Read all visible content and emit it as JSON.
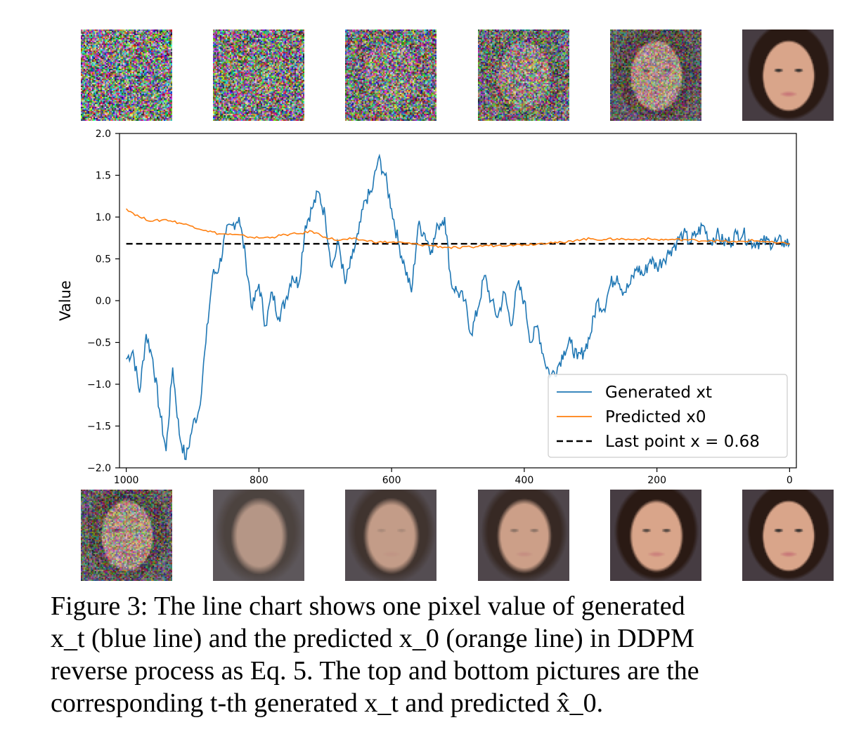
{
  "figure": {
    "top_images": [
      {
        "kind": "noise",
        "noise": 1.0,
        "face": 0.0,
        "dark_frac": 0.0
      },
      {
        "kind": "noise",
        "noise": 1.0,
        "face": 0.05,
        "dark_frac": 0.0
      },
      {
        "kind": "noise",
        "noise": 0.95,
        "face": 0.12,
        "dark_frac": 0.0
      },
      {
        "kind": "noise",
        "noise": 0.85,
        "face": 0.25,
        "dark_frac": 0.0
      },
      {
        "kind": "noise",
        "noise": 0.6,
        "face": 0.55,
        "dark_frac": 0.0
      },
      {
        "kind": "face",
        "noise": 0.0,
        "face": 1.0,
        "dark_frac": 0.0
      }
    ],
    "bottom_images": [
      {
        "kind": "blurface",
        "noise": 0.55,
        "face": 0.45,
        "blur": 0.0
      },
      {
        "kind": "blurface",
        "noise": 0.0,
        "face": 0.6,
        "blur": 1.0
      },
      {
        "kind": "blurface",
        "noise": 0.0,
        "face": 0.75,
        "blur": 0.8
      },
      {
        "kind": "blurface",
        "noise": 0.0,
        "face": 0.85,
        "blur": 0.55
      },
      {
        "kind": "blurface",
        "noise": 0.0,
        "face": 1.0,
        "blur": 0.2
      },
      {
        "kind": "face",
        "noise": 0.0,
        "face": 1.0,
        "blur": 0.0
      }
    ],
    "caption_lines": [
      "Figure 3: The line chart shows one pixel value of generated",
      "x_t (blue line) and the predicted x_0 (orange line) in DDPM",
      "reverse process as Eq. 5. The top and bottom pictures are the",
      "corresponding t-th generated x_t and predicted x̂_0."
    ]
  },
  "colors": {
    "generated": "#1f77b4",
    "predicted": "#ff7f0e",
    "reference": "#000000",
    "skin": "#d9a58a",
    "hair": "#2a1a14"
  },
  "chart_data": {
    "type": "line",
    "title": "",
    "xlabel": "",
    "ylabel": "Value",
    "xlim": [
      1000,
      0
    ],
    "ylim": [
      -2.0,
      2.0
    ],
    "x_ticks": [
      1000,
      800,
      600,
      400,
      200,
      0
    ],
    "y_ticks": [
      -2.0,
      -1.5,
      -1.0,
      -0.5,
      0.0,
      0.5,
      1.0,
      1.5,
      2.0
    ],
    "y_tick_labels": [
      "−2.0",
      "−1.5",
      "−1.0",
      "−0.5",
      "0.0",
      "0.5",
      "1.0",
      "1.5",
      "2.0"
    ],
    "legend_position": "lower-right",
    "series": [
      {
        "name": "Generated xt",
        "style": "solid",
        "x": [
          1000,
          990,
          980,
          970,
          960,
          950,
          940,
          930,
          920,
          910,
          900,
          890,
          880,
          870,
          860,
          850,
          840,
          830,
          820,
          810,
          800,
          790,
          780,
          770,
          760,
          750,
          740,
          730,
          720,
          710,
          700,
          690,
          680,
          670,
          660,
          650,
          640,
          630,
          620,
          610,
          600,
          590,
          580,
          570,
          560,
          550,
          540,
          530,
          520,
          510,
          500,
          490,
          480,
          470,
          460,
          450,
          440,
          430,
          420,
          410,
          400,
          390,
          380,
          370,
          360,
          350,
          340,
          330,
          320,
          310,
          300,
          290,
          280,
          270,
          260,
          250,
          240,
          230,
          220,
          210,
          200,
          190,
          180,
          170,
          160,
          150,
          140,
          130,
          120,
          110,
          100,
          90,
          80,
          70,
          60,
          50,
          40,
          30,
          20,
          10,
          0
        ],
        "y": [
          -0.7,
          -0.6,
          -1.1,
          -0.4,
          -0.7,
          -1.3,
          -1.8,
          -0.8,
          -1.6,
          -1.9,
          -1.5,
          -1.3,
          -0.5,
          0.3,
          0.4,
          0.8,
          0.9,
          1.0,
          0.5,
          -0.1,
          0.2,
          -0.3,
          0.1,
          -0.2,
          0.0,
          0.3,
          0.2,
          0.9,
          1.1,
          1.3,
          1.0,
          0.4,
          0.7,
          0.2,
          0.5,
          0.8,
          1.2,
          1.3,
          1.7,
          1.5,
          1.1,
          0.7,
          0.4,
          0.1,
          0.9,
          0.8,
          0.6,
          0.9,
          1.0,
          0.2,
          0.1,
          0.0,
          -0.4,
          -0.1,
          0.3,
          0.0,
          -0.2,
          0.1,
          -0.3,
          0.2,
          0.0,
          -0.5,
          -0.3,
          -0.7,
          -0.9,
          -0.8,
          -0.6,
          -0.5,
          -0.7,
          -0.6,
          -0.4,
          0.0,
          -0.1,
          0.2,
          0.3,
          0.1,
          0.2,
          0.4,
          0.3,
          0.5,
          0.4,
          0.5,
          0.6,
          0.7,
          0.8,
          0.7,
          0.8,
          0.9,
          0.7,
          0.8,
          0.7,
          0.7,
          0.8,
          0.8,
          0.7,
          0.7,
          0.7,
          0.7,
          0.7,
          0.7,
          0.68
        ]
      },
      {
        "name": "Predicted x0",
        "style": "solid",
        "x": [
          1000,
          980,
          960,
          940,
          920,
          900,
          880,
          860,
          840,
          820,
          800,
          780,
          760,
          740,
          720,
          700,
          680,
          660,
          640,
          620,
          600,
          580,
          560,
          540,
          520,
          500,
          480,
          460,
          440,
          420,
          400,
          380,
          360,
          340,
          320,
          300,
          280,
          260,
          240,
          220,
          200,
          180,
          160,
          140,
          120,
          100,
          80,
          60,
          40,
          20,
          0
        ],
        "y": [
          1.1,
          1.0,
          0.95,
          0.97,
          0.93,
          0.89,
          0.84,
          0.8,
          0.79,
          0.77,
          0.75,
          0.76,
          0.79,
          0.8,
          0.83,
          0.76,
          0.72,
          0.74,
          0.72,
          0.7,
          0.7,
          0.69,
          0.67,
          0.66,
          0.64,
          0.63,
          0.64,
          0.66,
          0.66,
          0.67,
          0.67,
          0.68,
          0.7,
          0.69,
          0.73,
          0.74,
          0.73,
          0.74,
          0.73,
          0.74,
          0.73,
          0.73,
          0.73,
          0.72,
          0.72,
          0.71,
          0.7,
          0.72,
          0.71,
          0.69,
          0.68
        ]
      }
    ],
    "reference_lines": [
      {
        "name": "Last point x = 0.68",
        "style": "dashed",
        "y": 0.68
      }
    ]
  }
}
